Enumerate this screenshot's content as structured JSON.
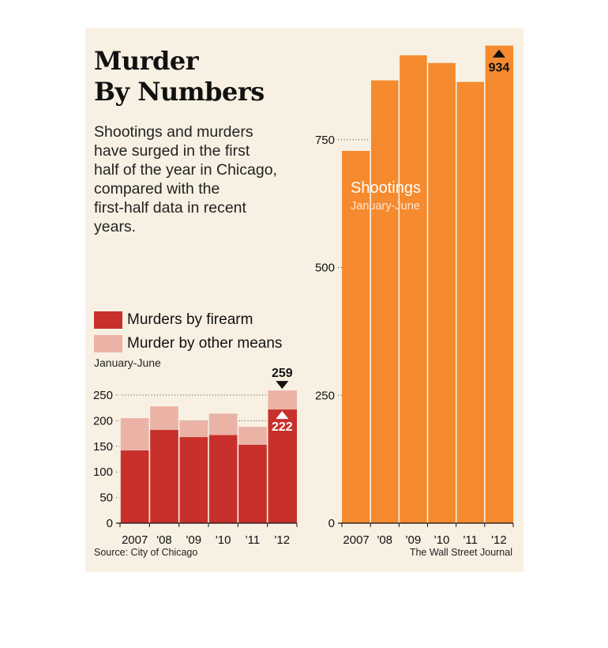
{
  "title_lines": [
    "Murder",
    "By Numbers"
  ],
  "subtitle_lines": [
    "Shootings and murders",
    "have surged in the first",
    "half of the year in Chicago,",
    "compared with the",
    "first-half data in recent",
    "years."
  ],
  "legend": {
    "firearm_label": "Murders by firearm",
    "other_label": "Murder by other means",
    "period": "January-June",
    "firearm_color": "#c8302c",
    "other_color": "#eab3a6"
  },
  "source": "Source: City of Chicago",
  "credit": "The Wall Street Journal",
  "chart_data": [
    {
      "type": "bar",
      "stacked": true,
      "categories": [
        "2007",
        "'08",
        "'09",
        "'10",
        "'11",
        "'12"
      ],
      "series": [
        {
          "name": "Murders by firearm",
          "values": [
            142,
            182,
            168,
            172,
            153,
            222
          ],
          "color": "#c8302c"
        },
        {
          "name": "Murder by other means",
          "values": [
            63,
            46,
            32,
            42,
            35,
            37
          ],
          "color": "#eab3a6"
        }
      ],
      "totals": [
        205,
        228,
        200,
        214,
        188,
        259
      ],
      "ylim": [
        0,
        250
      ],
      "yticks": [
        0,
        50,
        100,
        150,
        200,
        250
      ],
      "grid": true,
      "annotations": [
        {
          "category": "'12",
          "label": "259",
          "target": "total",
          "marker": "down-triangle"
        },
        {
          "category": "'12",
          "label": "222",
          "target": "firearm",
          "marker": "up-triangle"
        }
      ]
    },
    {
      "type": "bar",
      "categories": [
        "2007",
        "'08",
        "'09",
        "'10",
        "'11",
        "'12"
      ],
      "values": [
        728,
        866,
        915,
        900,
        863,
        934
      ],
      "color": "#f58a2e",
      "series_label": "Shootings",
      "series_sublabel": "January-June",
      "ylim": [
        0,
        934
      ],
      "yticks": [
        0,
        250,
        500,
        750
      ],
      "grid": true,
      "annotations": [
        {
          "category": "'12",
          "label": "934",
          "marker": "up-triangle"
        }
      ]
    }
  ]
}
